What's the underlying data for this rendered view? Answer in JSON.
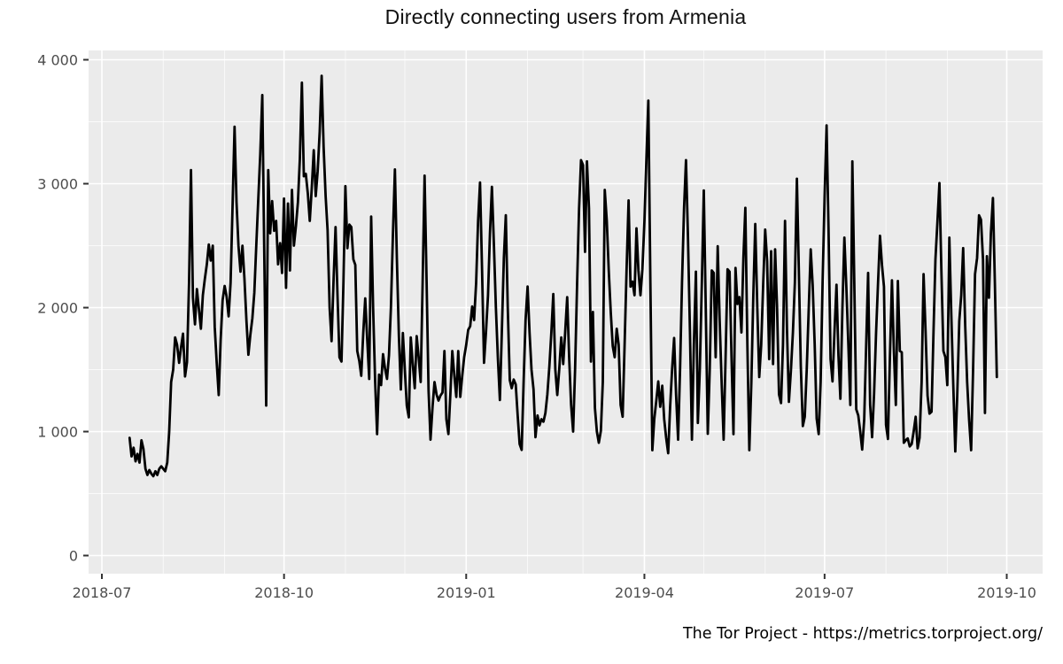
{
  "page": {
    "title": "Directly connecting users from Armenia",
    "footer": "The Tor Project - https://metrics.torproject.org/"
  },
  "colors": {
    "panel_background": "#ebebeb",
    "grid_major": "#ffffff",
    "grid_minor": "#f7f7f7",
    "line": "#000000",
    "tick_mark": "#333333",
    "tick_label": "#4d4d4d",
    "title_text": "#111111"
  },
  "chart_data": {
    "type": "line",
    "title": "Directly connecting users from Armenia",
    "xlabel": "",
    "ylabel": "",
    "legend": "none",
    "grid": "on",
    "ylim": [
      0,
      4100
    ],
    "y_ticks": [
      0,
      1000,
      2000,
      3000,
      4000
    ],
    "y_tick_labels": [
      "0",
      "1 000",
      "2 000",
      "3 000",
      "4 000"
    ],
    "y_minor_ticks": [
      500,
      1500,
      2500,
      3500
    ],
    "x_tick_dates": [
      "2018-07-01",
      "2018-10-01",
      "2019-01-01",
      "2019-04-01",
      "2019-07-01",
      "2019-10-01"
    ],
    "x_tick_labels": [
      "2018-07",
      "2018-10",
      "2019-01",
      "2019-04",
      "2019-07",
      "2019-10"
    ],
    "x_minor_unit": "month",
    "series_name": "directly connecting users",
    "start_date": "2018-07-15",
    "interval_days": 1,
    "values": [
      950,
      800,
      870,
      760,
      820,
      750,
      930,
      860,
      700,
      650,
      690,
      660,
      640,
      680,
      650,
      700,
      720,
      700,
      680,
      750,
      1000,
      1400,
      1500,
      1760,
      1700,
      1555,
      1680,
      1790,
      1445,
      1560,
      2200,
      3110,
      2080,
      1865,
      2150,
      1990,
      1830,
      2100,
      2230,
      2350,
      2510,
      2380,
      2500,
      1845,
      1560,
      1295,
      1740,
      2060,
      2175,
      2090,
      1930,
      2200,
      2810,
      3460,
      2850,
      2500,
      2290,
      2500,
      2240,
      1895,
      1620,
      1780,
      1915,
      2120,
      2500,
      2880,
      3240,
      3715,
      2450,
      1210,
      3110,
      2600,
      2860,
      2620,
      2700,
      2350,
      2520,
      2280,
      2880,
      2160,
      2840,
      2300,
      2950,
      2500,
      2660,
      2850,
      3200,
      3815,
      3060,
      3080,
      2920,
      2700,
      2960,
      3270,
      2900,
      3100,
      3420,
      3870,
      3300,
      2900,
      2625,
      2000,
      1730,
      2210,
      2650,
      2100,
      1600,
      1565,
      2200,
      2980,
      2480,
      2670,
      2650,
      2390,
      2345,
      1650,
      1570,
      1450,
      1800,
      2075,
      1750,
      1425,
      2735,
      2000,
      1400,
      980,
      1460,
      1375,
      1625,
      1510,
      1425,
      1615,
      2000,
      2600,
      3115,
      2400,
      1770,
      1340,
      1795,
      1500,
      1210,
      1115,
      1760,
      1550,
      1350,
      1770,
      1600,
      1400,
      2200,
      3065,
      2200,
      1330,
      935,
      1200,
      1400,
      1300,
      1250,
      1290,
      1315,
      1650,
      1100,
      980,
      1300,
      1650,
      1450,
      1280,
      1650,
      1280,
      1450,
      1600,
      1700,
      1820,
      1850,
      2010,
      1900,
      2200,
      2700,
      3010,
      2300,
      1555,
      1800,
      2100,
      2600,
      2975,
      2500,
      2000,
      1600,
      1255,
      1800,
      2400,
      2745,
      2000,
      1415,
      1350,
      1420,
      1380,
      1130,
      900,
      852,
      1400,
      1900,
      2170,
      1800,
      1500,
      1340,
      955,
      1130,
      1050,
      1100,
      1080,
      1150,
      1300,
      1530,
      1800,
      2110,
      1500,
      1295,
      1500,
      1760,
      1545,
      1800,
      2085,
      1600,
      1215,
      1000,
      1500,
      2200,
      2800,
      3190,
      3150,
      2450,
      3180,
      2800,
      1565,
      1965,
      1190,
      1000,
      910,
      1005,
      1400,
      2950,
      2700,
      2300,
      1960,
      1690,
      1600,
      1830,
      1700,
      1215,
      1120,
      1700,
      2300,
      2865,
      2170,
      2210,
      2100,
      2640,
      2300,
      2100,
      2310,
      2700,
      3200,
      3670,
      2200,
      850,
      1100,
      1250,
      1405,
      1200,
      1370,
      1100,
      950,
      825,
      1200,
      1500,
      1755,
      1300,
      935,
      1500,
      2200,
      2800,
      3190,
      2580,
      1800,
      935,
      1700,
      2290,
      1070,
      1500,
      2200,
      2945,
      2000,
      982,
      1500,
      2300,
      2280,
      1600,
      2495,
      1900,
      1405,
      935,
      1600,
      2310,
      2290,
      1600,
      980,
      2320,
      2030,
      2085,
      1800,
      2400,
      2805,
      1700,
      850,
      1400,
      2100,
      2675,
      2000,
      1440,
      1700,
      2200,
      2630,
      2375,
      1585,
      2455,
      1545,
      2470,
      2005,
      1300,
      1230,
      1700,
      2700,
      1825,
      1240,
      1500,
      1800,
      2200,
      3040,
      2300,
      1530,
      1045,
      1120,
      1500,
      2000,
      2470,
      2185,
      1700,
      1105,
      980,
      1400,
      2200,
      2900,
      3470,
      2640,
      1585,
      1405,
      1800,
      2185,
      1615,
      1265,
      2000,
      2565,
      2170,
      1700,
      1215,
      3180,
      2200,
      1180,
      1130,
      1000,
      855,
      1100,
      1700,
      2280,
      1215,
      955,
      1300,
      1800,
      2200,
      2580,
      2340,
      2170,
      1055,
      940,
      1600,
      2220,
      1650,
      1215,
      2215,
      1650,
      1640,
      910,
      930,
      945,
      880,
      900,
      1000,
      1120,
      865,
      950,
      1400,
      2270,
      1800,
      1290,
      1145,
      1160,
      1800,
      2390,
      2700,
      3005,
      2300,
      1650,
      1600,
      1375,
      2565,
      1945,
      1385,
      840,
      1290,
      1890,
      2100,
      2480,
      1855,
      1400,
      1095,
      850,
      1500,
      2270,
      2400,
      2745,
      2710,
      2390,
      1150,
      2415,
      2080,
      2600,
      2885,
      2195,
      1440
    ]
  }
}
